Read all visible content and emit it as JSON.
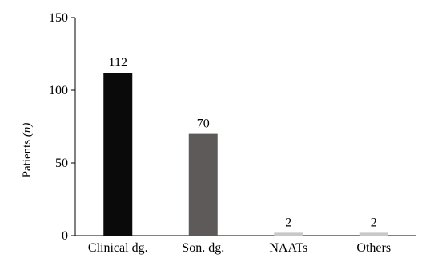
{
  "chart_data": {
    "type": "bar",
    "categories": [
      "Clinical dg.",
      "Son. dg.",
      "NAATs",
      "Others"
    ],
    "values": [
      112,
      70,
      2,
      2
    ],
    "data_labels": [
      "112",
      "70",
      "2",
      "2"
    ],
    "title": "",
    "xlabel": "",
    "ylabel": "Patients",
    "ylabel_unit": "(n)",
    "ylim": [
      0,
      150
    ],
    "yticks": [
      0,
      50,
      100,
      150
    ],
    "grid": false,
    "legend": "none",
    "colors": [
      "#0a0a0a",
      "#5f5a5a",
      "#c8c8c8",
      "#c8c8c8"
    ]
  }
}
